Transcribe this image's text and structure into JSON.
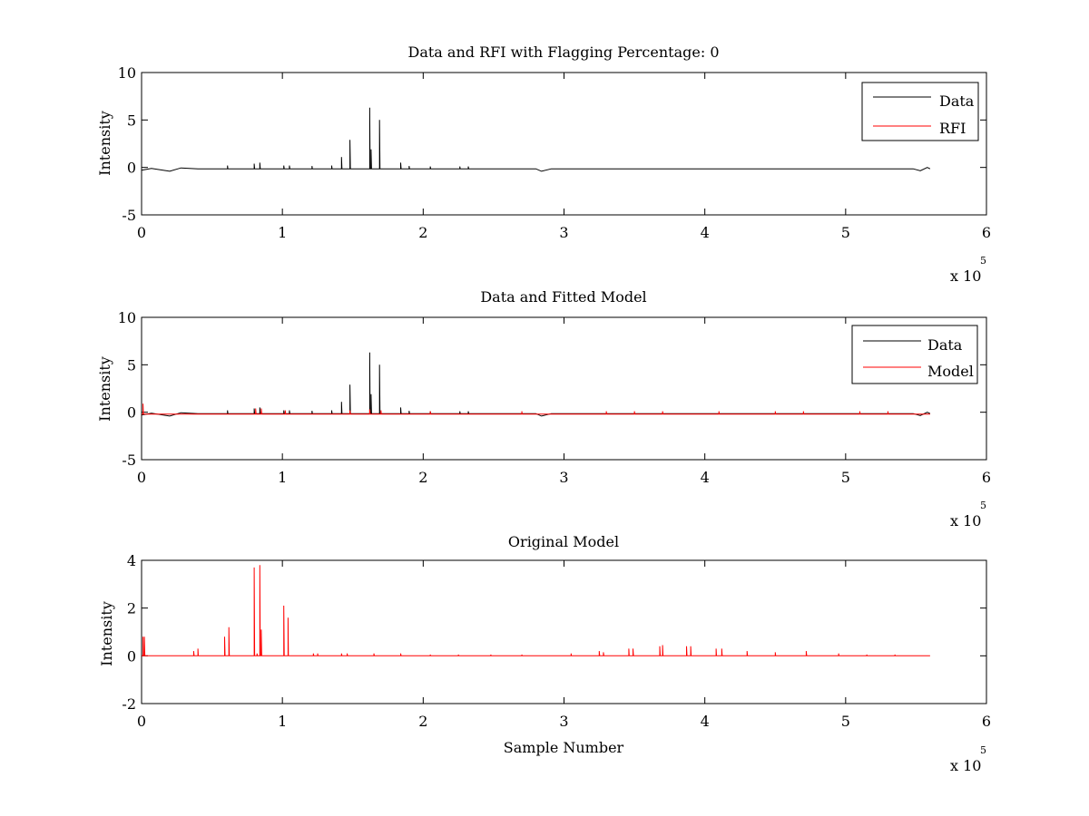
{
  "chart_data": [
    {
      "type": "line",
      "title": "Data and RFI with Flagging Percentage: 0",
      "xlabel": "",
      "ylabel": "Intensity",
      "xlim": [
        0,
        600000
      ],
      "ylim": [
        -5,
        10
      ],
      "xticks": [
        "0",
        "1",
        "2",
        "3",
        "4",
        "5",
        "6"
      ],
      "yticks": [
        "-5",
        "0",
        "5",
        "10"
      ],
      "x_multiplier": "x 10",
      "x_multiplier_exp": "5",
      "legend": {
        "position": "top-right",
        "entries": [
          "Data",
          "RFI"
        ]
      },
      "grid": false,
      "series": [
        {
          "name": "Data",
          "color": "#000000",
          "baseline": -0.15,
          "drift": [
            [
              0,
              -0.3
            ],
            [
              7000,
              -0.1
            ],
            [
              20000,
              -0.4
            ],
            [
              28000,
              -0.05
            ],
            [
              40000,
              -0.15
            ],
            [
              280000,
              -0.15
            ],
            [
              284000,
              -0.4
            ],
            [
              291000,
              -0.15
            ],
            [
              548000,
              -0.15
            ],
            [
              553000,
              -0.35
            ],
            [
              558000,
              0.0
            ],
            [
              560000,
              -0.15
            ]
          ],
          "spikes": [
            [
              61000,
              0.2
            ],
            [
              80000,
              0.4
            ],
            [
              84000,
              0.5
            ],
            [
              101000,
              0.2
            ],
            [
              105000,
              0.2
            ],
            [
              121000,
              0.15
            ],
            [
              135000,
              0.2
            ],
            [
              142000,
              1.1
            ],
            [
              148000,
              2.9
            ],
            [
              162000,
              6.3
            ],
            [
              163000,
              1.9
            ],
            [
              169000,
              5.0
            ],
            [
              184000,
              0.5
            ],
            [
              190000,
              0.15
            ],
            [
              205000,
              0.1
            ],
            [
              226000,
              0.1
            ],
            [
              232000,
              0.1
            ]
          ],
          "x_end": 560000
        },
        {
          "name": "RFI",
          "color": "#ff0000",
          "points": []
        }
      ]
    },
    {
      "type": "line",
      "title": "Data and Fitted Model",
      "xlabel": "",
      "ylabel": "Intensity",
      "xlim": [
        0,
        600000
      ],
      "ylim": [
        -5,
        10
      ],
      "xticks": [
        "0",
        "1",
        "2",
        "3",
        "4",
        "5",
        "6"
      ],
      "yticks": [
        "-5",
        "0",
        "5",
        "10"
      ],
      "x_multiplier": "x 10",
      "x_multiplier_exp": "5",
      "legend": {
        "position": "top-right",
        "entries": [
          "Data",
          "Model"
        ]
      },
      "grid": false,
      "series": [
        {
          "name": "Data",
          "color": "#000000",
          "baseline": -0.15,
          "drift": [
            [
              0,
              -0.3
            ],
            [
              7000,
              -0.1
            ],
            [
              20000,
              -0.4
            ],
            [
              28000,
              -0.05
            ],
            [
              40000,
              -0.15
            ],
            [
              280000,
              -0.15
            ],
            [
              284000,
              -0.4
            ],
            [
              291000,
              -0.15
            ],
            [
              548000,
              -0.15
            ],
            [
              553000,
              -0.35
            ],
            [
              558000,
              0.0
            ],
            [
              560000,
              -0.15
            ]
          ],
          "spikes": [
            [
              61000,
              0.2
            ],
            [
              80000,
              0.4
            ],
            [
              84000,
              0.5
            ],
            [
              101000,
              0.2
            ],
            [
              105000,
              0.2
            ],
            [
              121000,
              0.15
            ],
            [
              135000,
              0.2
            ],
            [
              142000,
              1.1
            ],
            [
              148000,
              2.9
            ],
            [
              162000,
              6.3
            ],
            [
              163000,
              1.9
            ],
            [
              169000,
              5.0
            ],
            [
              184000,
              0.5
            ],
            [
              190000,
              0.15
            ],
            [
              205000,
              0.1
            ],
            [
              226000,
              0.1
            ],
            [
              232000,
              0.1
            ]
          ],
          "x_end": 560000
        },
        {
          "name": "Model",
          "color": "#ff0000",
          "baseline": -0.2,
          "spikes": [
            [
              1000,
              0.9
            ],
            [
              81000,
              0.4
            ],
            [
              85000,
              0.4
            ],
            [
              102000,
              0.2
            ],
            [
              148000,
              0.2
            ],
            [
              162000,
              0.3
            ],
            [
              170000,
              0.2
            ],
            [
              205000,
              0.1
            ],
            [
              270000,
              0.1
            ],
            [
              330000,
              0.1
            ],
            [
              350000,
              0.1
            ],
            [
              370000,
              0.1
            ],
            [
              410000,
              0.1
            ],
            [
              450000,
              0.1
            ],
            [
              470000,
              0.1
            ],
            [
              510000,
              0.1
            ],
            [
              530000,
              0.1
            ]
          ],
          "x_end": 560000
        }
      ]
    },
    {
      "type": "line",
      "title": "Original Model",
      "xlabel": "Sample Number",
      "ylabel": "Intensity",
      "xlim": [
        0,
        600000
      ],
      "ylim": [
        -2,
        4
      ],
      "xticks": [
        "0",
        "1",
        "2",
        "3",
        "4",
        "5",
        "6"
      ],
      "yticks": [
        "-2",
        "0",
        "2",
        "4"
      ],
      "x_multiplier": "x 10",
      "x_multiplier_exp": "5",
      "grid": false,
      "series": [
        {
          "name": "",
          "color": "#ff0000",
          "baseline": 0,
          "spikes": [
            [
              1000,
              0.8
            ],
            [
              2000,
              0.8
            ],
            [
              37000,
              0.2
            ],
            [
              40000,
              0.3
            ],
            [
              59000,
              0.8
            ],
            [
              62000,
              1.2
            ],
            [
              80000,
              3.7
            ],
            [
              82000,
              0.1
            ],
            [
              84000,
              3.8
            ],
            [
              85000,
              1.1
            ],
            [
              101000,
              2.1
            ],
            [
              104000,
              1.6
            ],
            [
              122000,
              0.1
            ],
            [
              125000,
              0.1
            ],
            [
              142000,
              0.1
            ],
            [
              146000,
              0.1
            ],
            [
              165000,
              0.1
            ],
            [
              184000,
              0.1
            ],
            [
              205000,
              0.05
            ],
            [
              225000,
              0.05
            ],
            [
              248000,
              0.05
            ],
            [
              270000,
              0.05
            ],
            [
              305000,
              0.1
            ],
            [
              325000,
              0.2
            ],
            [
              328000,
              0.15
            ],
            [
              346000,
              0.3
            ],
            [
              349000,
              0.3
            ],
            [
              368000,
              0.4
            ],
            [
              370000,
              0.45
            ],
            [
              387000,
              0.4
            ],
            [
              390000,
              0.4
            ],
            [
              408000,
              0.3
            ],
            [
              412000,
              0.3
            ],
            [
              430000,
              0.2
            ],
            [
              450000,
              0.15
            ],
            [
              472000,
              0.2
            ],
            [
              495000,
              0.1
            ],
            [
              515000,
              0.05
            ],
            [
              535000,
              0.05
            ]
          ],
          "x_end": 560000
        }
      ]
    }
  ]
}
